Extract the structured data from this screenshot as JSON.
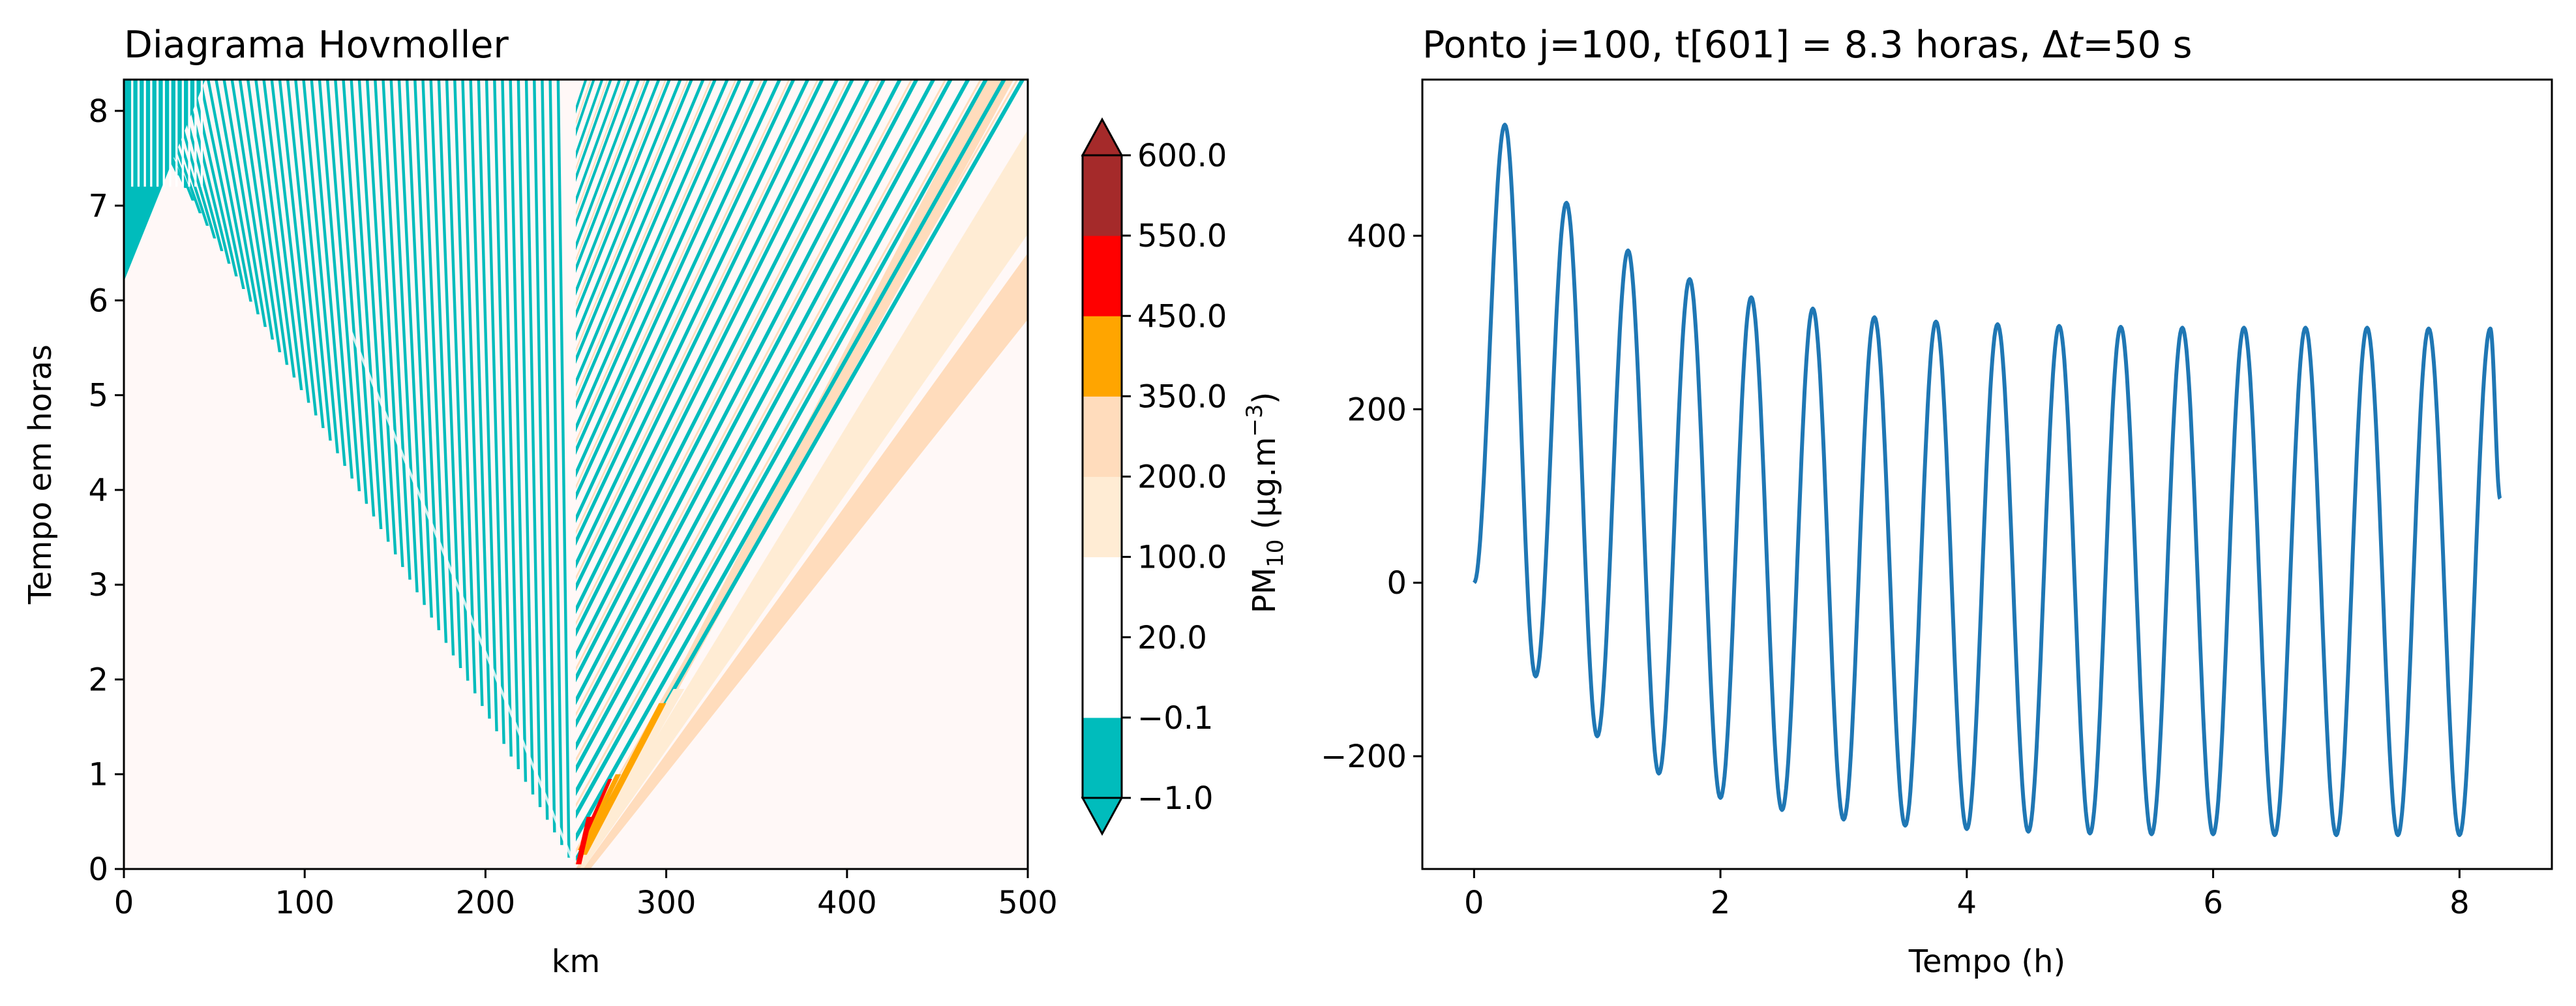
{
  "chart_data": [
    {
      "type": "heatmap",
      "title": "Diagrama Hovmoller",
      "xlabel": "km",
      "ylabel": "Tempo em horas",
      "xlim": [
        0,
        500
      ],
      "ylim": [
        0,
        8.33
      ],
      "x_ticks": [
        "0",
        "100",
        "200",
        "300",
        "400",
        "500"
      ],
      "y_ticks": [
        "0",
        "1",
        "2",
        "3",
        "4",
        "5",
        "6",
        "7",
        "8"
      ],
      "source_km": 250,
      "colorbar": {
        "label_main": "PM",
        "label_sub": "10",
        "label_unit": " (μg.m",
        "label_exp": "−3",
        "label_close": ")",
        "levels": [
          -1.0,
          -0.1,
          20.0,
          100.0,
          200.0,
          350.0,
          450.0,
          550.0,
          600.0
        ],
        "tick_labels": [
          "−1.0",
          "−0.1",
          "20.0",
          "100.0",
          "200.0",
          "350.0",
          "450.0",
          "550.0",
          "600.0"
        ],
        "colors": [
          "#00bcbc",
          "#ffffff",
          "#ffffff",
          "#ffecd4",
          "#ffdcbc",
          "#ffa500",
          "#ff0000",
          "#a52a2a"
        ],
        "extend": "both"
      },
      "background_color": "#fff8f7"
    },
    {
      "type": "line",
      "title": "Ponto j=100, t[601] = 8.3 horas, Δt=50 s",
      "title_parts": {
        "before": "Ponto j=100, t[601] = 8.3 horas, Δ",
        "italic": "t",
        "after": "=50 s"
      },
      "xlabel": "Tempo (h)",
      "ylabel": "",
      "xlim": [
        -0.42,
        8.75
      ],
      "ylim": [
        -330,
        580
      ],
      "x_ticks": [
        "0",
        "2",
        "4",
        "6",
        "8"
      ],
      "y_ticks": [
        "−200",
        "0",
        "200",
        "400"
      ],
      "line_color": "#1f77b4",
      "series": [
        {
          "peaks": [
            [
              0.25,
              528
            ],
            [
              0.75,
              438
            ],
            [
              1.25,
              383
            ],
            [
              1.75,
              350
            ],
            [
              2.25,
              329
            ],
            [
              2.75,
              316
            ],
            [
              3.25,
              306
            ],
            [
              3.75,
              301
            ],
            [
              4.25,
              298
            ],
            [
              4.75,
              296
            ],
            [
              5.25,
              295
            ],
            [
              5.75,
              294
            ],
            [
              6.25,
              294
            ],
            [
              6.75,
              294
            ],
            [
              7.25,
              294
            ],
            [
              7.75,
              293
            ],
            [
              8.25,
              293
            ]
          ],
          "troughs": [
            [
              0.5,
              -108
            ],
            [
              1.0,
              -177
            ],
            [
              1.5,
              -220
            ],
            [
              2.0,
              -248
            ],
            [
              2.5,
              -262
            ],
            [
              3.0,
              -273
            ],
            [
              3.5,
              -280
            ],
            [
              4.0,
              -284
            ],
            [
              4.5,
              -287
            ],
            [
              5.0,
              -289
            ],
            [
              5.5,
              -290
            ],
            [
              6.0,
              -290
            ],
            [
              6.5,
              -291
            ],
            [
              7.0,
              -291
            ],
            [
              7.5,
              -291
            ],
            [
              8.0,
              -291
            ]
          ],
          "start": [
            0,
            0
          ],
          "end": [
            8.33,
            97
          ]
        }
      ]
    }
  ]
}
